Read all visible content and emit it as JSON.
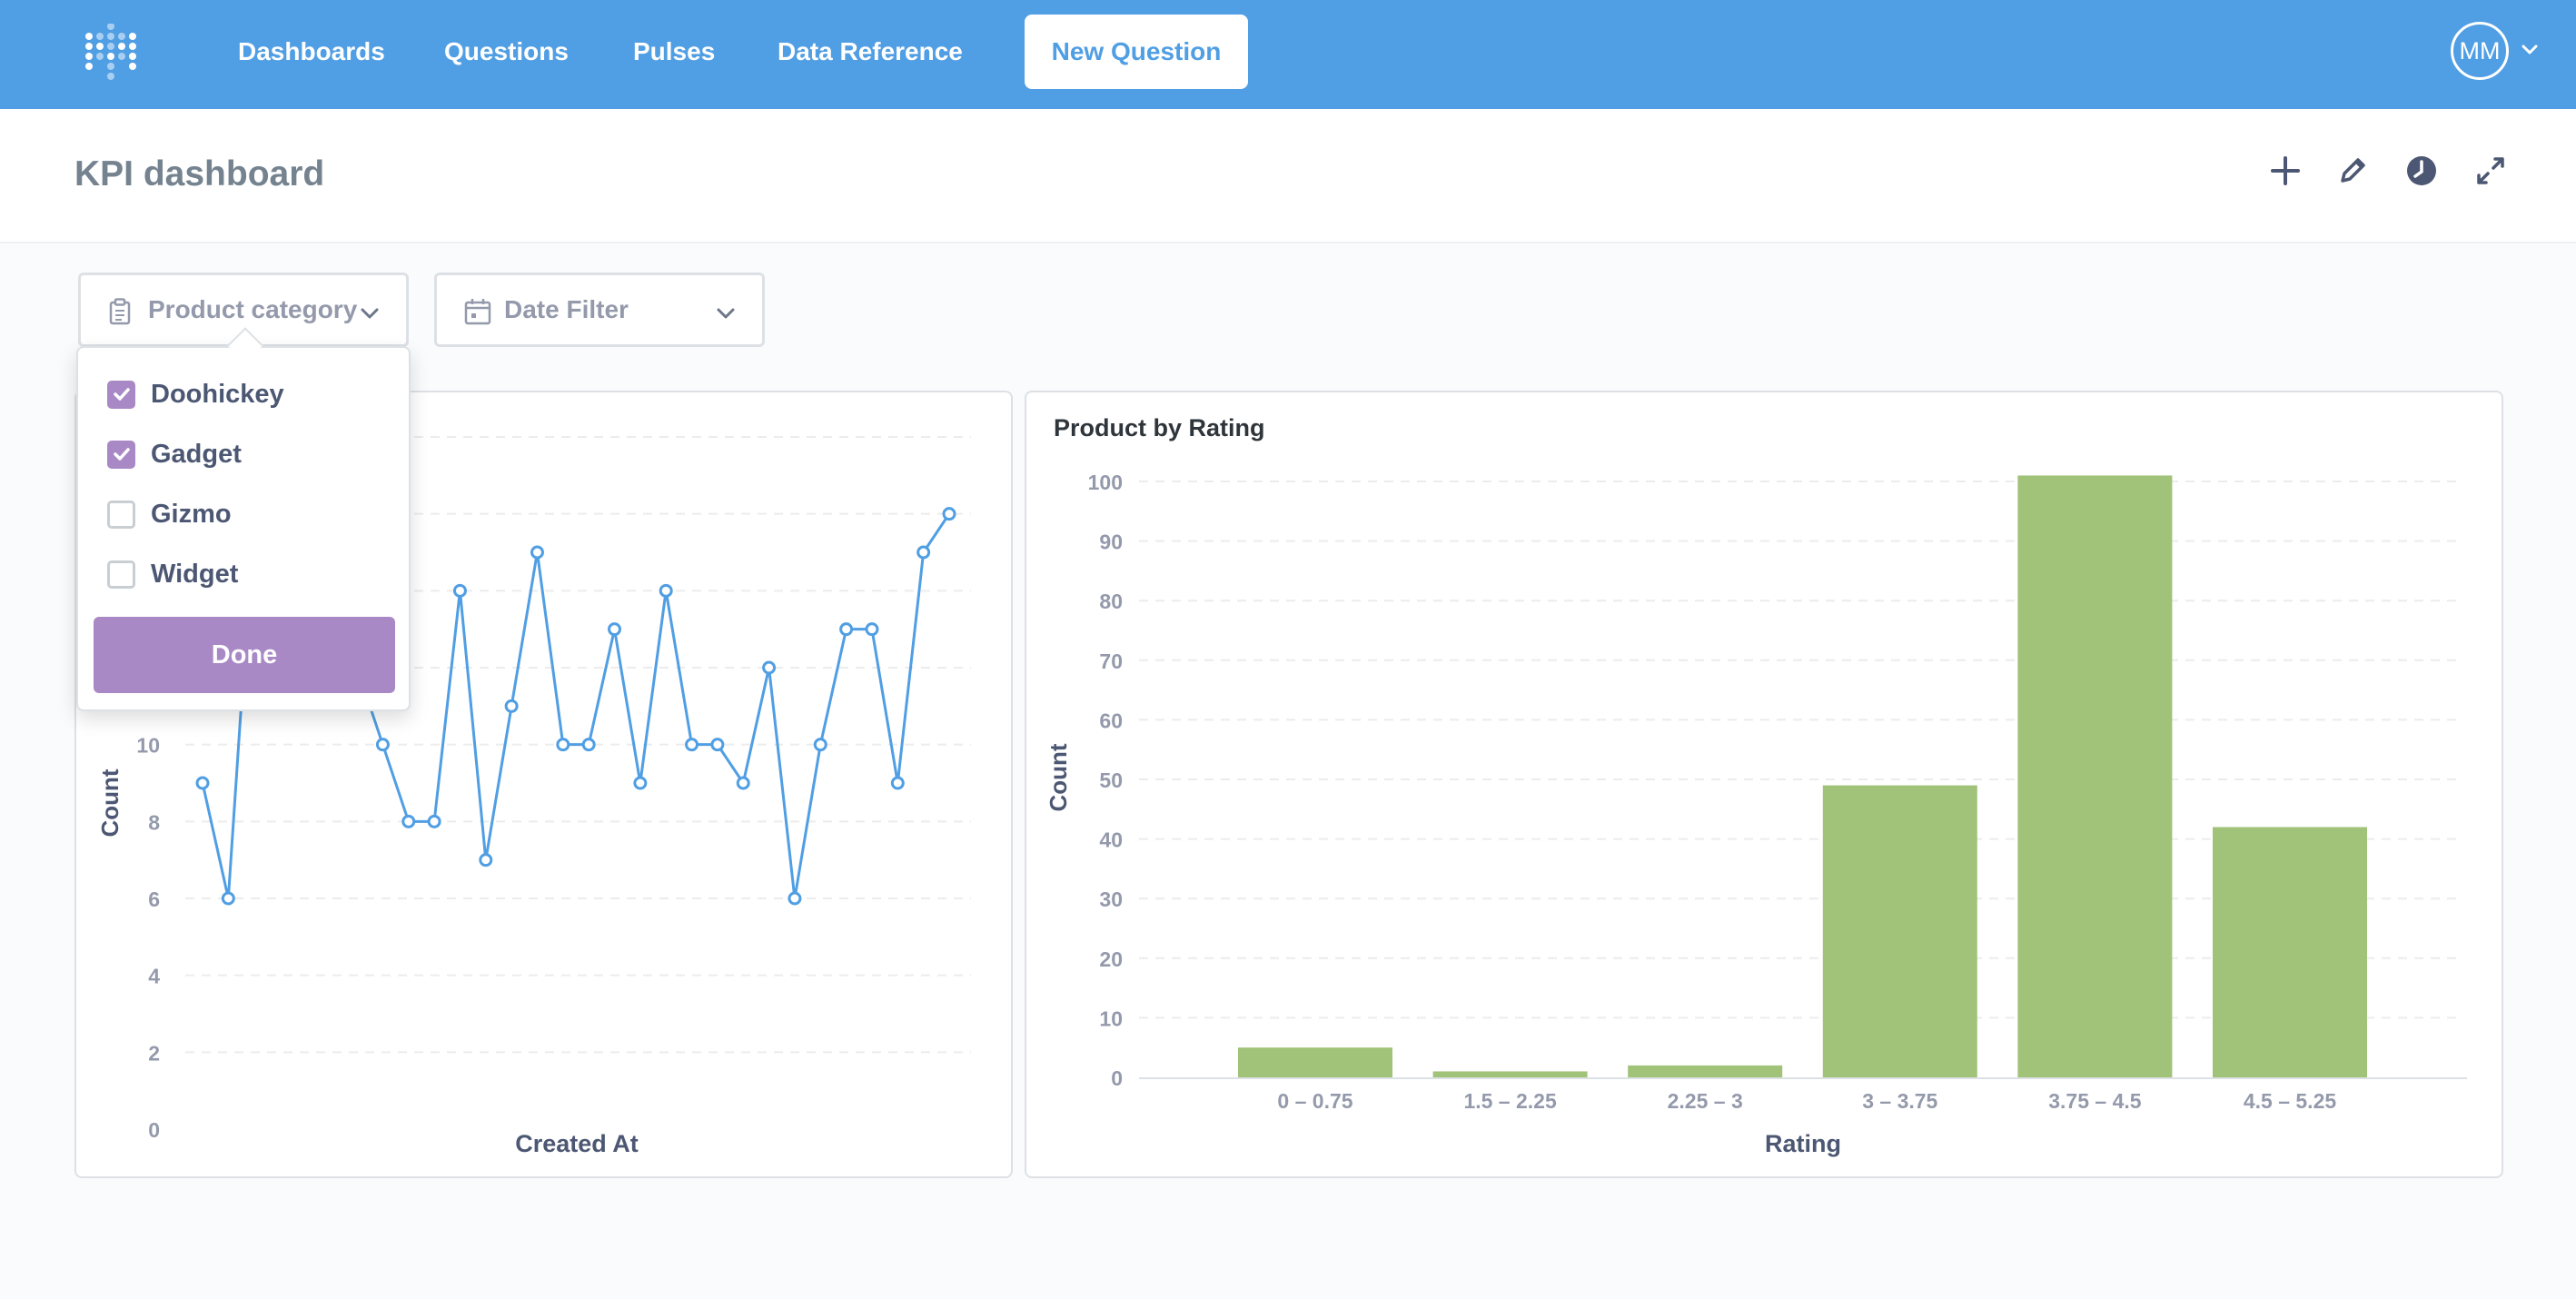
{
  "nav": {
    "links": [
      "Dashboards",
      "Questions",
      "Pulses",
      "Data Reference"
    ],
    "new_question": "New Question",
    "avatar_initials": "MM",
    "bg_color": "#509ee3"
  },
  "header": {
    "title": "KPI dashboard",
    "icons": [
      "add-icon",
      "pencil-icon",
      "history-icon",
      "fullscreen-icon"
    ]
  },
  "filters": {
    "product_category": {
      "label": "Product category",
      "icon": "category-icon"
    },
    "date": {
      "label": "Date Filter",
      "icon": "calendar-icon"
    }
  },
  "popover": {
    "options": [
      {
        "label": "Doohickey",
        "checked": true
      },
      {
        "label": "Gadget",
        "checked": true
      },
      {
        "label": "Gizmo",
        "checked": false
      },
      {
        "label": "Widget",
        "checked": false
      }
    ],
    "done_label": "Done",
    "accent": "#a989c5"
  },
  "chart_data": [
    {
      "type": "line",
      "title": "",
      "xlabel": "Created At",
      "ylabel": "Count",
      "ylim": [
        0,
        18
      ],
      "yticks": [
        0,
        2,
        4,
        6,
        8,
        10
      ],
      "color": "#509ee3",
      "values": [
        9,
        6,
        16,
        17,
        15,
        16,
        12,
        10,
        8,
        8,
        14,
        7,
        11,
        15,
        10,
        10,
        13,
        9,
        14,
        10,
        10,
        9,
        12,
        6,
        10,
        13,
        13,
        9,
        15,
        16
      ]
    },
    {
      "type": "bar",
      "title": "Product by Rating",
      "xlabel": "Rating",
      "ylabel": "Count",
      "ylim": [
        0,
        100
      ],
      "yticks": [
        0,
        10,
        20,
        30,
        40,
        50,
        60,
        70,
        80,
        90,
        100
      ],
      "color": "#a1c279",
      "categories": [
        "0 – 0.75",
        "1.5 – 2.25",
        "2.25 – 3",
        "3 – 3.75",
        "3.75 – 4.5",
        "4.5 – 5.25"
      ],
      "values": [
        5,
        1,
        2,
        49,
        101,
        42
      ]
    }
  ]
}
